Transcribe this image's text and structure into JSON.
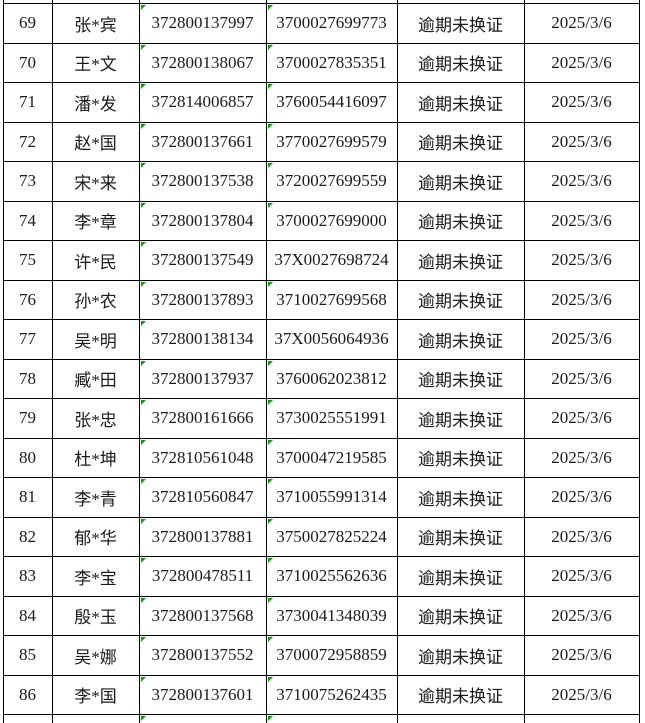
{
  "page": {
    "background_color": "#ffffff",
    "border_color": "#000000",
    "text_color": "#1a1a1a",
    "flag_color": "#149b14"
  },
  "icons": {
    "flag": "excel-text-number-flag (green corner triangle)"
  },
  "table": {
    "rows": [
      {
        "no": "69",
        "name": "张*宾",
        "num1": "372800137997",
        "num2": "3700027699773",
        "status": "逾期未换证",
        "date": "2025/3/6",
        "flag_num1": true,
        "flag_num2": true
      },
      {
        "no": "70",
        "name": "王*文",
        "num1": "372800138067",
        "num2": "3700027835351",
        "status": "逾期未换证",
        "date": "2025/3/6",
        "flag_num1": true,
        "flag_num2": true
      },
      {
        "no": "71",
        "name": "潘*发",
        "num1": "372814006857",
        "num2": "3760054416097",
        "status": "逾期未换证",
        "date": "2025/3/6",
        "flag_num1": true,
        "flag_num2": true
      },
      {
        "no": "72",
        "name": "赵*国",
        "num1": "372800137661",
        "num2": "3770027699579",
        "status": "逾期未换证",
        "date": "2025/3/6",
        "flag_num1": true,
        "flag_num2": true
      },
      {
        "no": "73",
        "name": "宋*来",
        "num1": "372800137538",
        "num2": "3720027699559",
        "status": "逾期未换证",
        "date": "2025/3/6",
        "flag_num1": true,
        "flag_num2": true
      },
      {
        "no": "74",
        "name": "李*章",
        "num1": "372800137804",
        "num2": "3700027699000",
        "status": "逾期未换证",
        "date": "2025/3/6",
        "flag_num1": true,
        "flag_num2": true
      },
      {
        "no": "75",
        "name": "许*民",
        "num1": "372800137549",
        "num2": "37X0027698724",
        "status": "逾期未换证",
        "date": "2025/3/6",
        "flag_num1": true,
        "flag_num2": false
      },
      {
        "no": "76",
        "name": "孙*农",
        "num1": "372800137893",
        "num2": "3710027699568",
        "status": "逾期未换证",
        "date": "2025/3/6",
        "flag_num1": true,
        "flag_num2": true
      },
      {
        "no": "77",
        "name": "吴*明",
        "num1": "372800138134",
        "num2": "37X0056064936",
        "status": "逾期未换证",
        "date": "2025/3/6",
        "flag_num1": true,
        "flag_num2": false
      },
      {
        "no": "78",
        "name": "臧*田",
        "num1": "372800137937",
        "num2": "3760062023812",
        "status": "逾期未换证",
        "date": "2025/3/6",
        "flag_num1": true,
        "flag_num2": true
      },
      {
        "no": "79",
        "name": "张*忠",
        "num1": "372800161666",
        "num2": "3730025551991",
        "status": "逾期未换证",
        "date": "2025/3/6",
        "flag_num1": true,
        "flag_num2": true
      },
      {
        "no": "80",
        "name": "杜*坤",
        "num1": "372810561048",
        "num2": "3700047219585",
        "status": "逾期未换证",
        "date": "2025/3/6",
        "flag_num1": true,
        "flag_num2": true
      },
      {
        "no": "81",
        "name": "李*青",
        "num1": "372810560847",
        "num2": "3710055991314",
        "status": "逾期未换证",
        "date": "2025/3/6",
        "flag_num1": true,
        "flag_num2": true
      },
      {
        "no": "82",
        "name": "郁*华",
        "num1": "372800137881",
        "num2": "3750027825224",
        "status": "逾期未换证",
        "date": "2025/3/6",
        "flag_num1": true,
        "flag_num2": true
      },
      {
        "no": "83",
        "name": "李*宝",
        "num1": "372800478511",
        "num2": "3710025562636",
        "status": "逾期未换证",
        "date": "2025/3/6",
        "flag_num1": true,
        "flag_num2": true
      },
      {
        "no": "84",
        "name": "殷*玉",
        "num1": "372800137568",
        "num2": "3730041348039",
        "status": "逾期未换证",
        "date": "2025/3/6",
        "flag_num1": true,
        "flag_num2": true
      },
      {
        "no": "85",
        "name": "吴*娜",
        "num1": "372800137552",
        "num2": "3700072958859",
        "status": "逾期未换证",
        "date": "2025/3/6",
        "flag_num1": true,
        "flag_num2": true
      },
      {
        "no": "86",
        "name": "李*国",
        "num1": "372800137601",
        "num2": "3710075262435",
        "status": "逾期未换证",
        "date": "2025/3/6",
        "flag_num1": true,
        "flag_num2": true
      }
    ],
    "partial_bottom_row": {
      "flag_num1": true,
      "flag_num2": true
    }
  }
}
